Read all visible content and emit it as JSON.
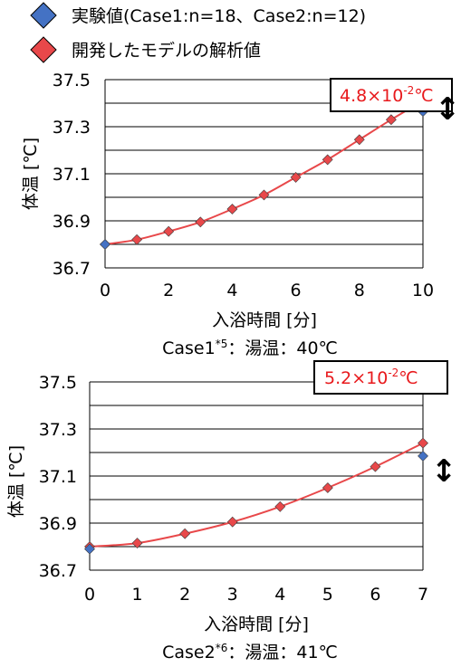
{
  "legend": {
    "experimental_label": "実験値(Case1:n=18、Case2:n=12)",
    "model_label": "開発したモデルの解析値",
    "experimental_color": "#4472C4",
    "model_color": "#E8484A"
  },
  "colors": {
    "curve": "#E8484A",
    "grid": "#000000",
    "diff_box_text": "#E8191C"
  },
  "chart_data": [
    {
      "type": "line",
      "caption_main": "Case1",
      "caption_sup": "*5",
      "caption_rest": "：湯温：40℃",
      "xlabel": "入浴時間 [分]",
      "ylabel": "体温 [℃]",
      "xlim": [
        0,
        10
      ],
      "ylim": [
        36.7,
        37.5
      ],
      "x_ticks": [
        0,
        2,
        4,
        6,
        8,
        10
      ],
      "y_ticks": [
        "36.7",
        "36.9",
        "37.1",
        "37.3",
        "37.5"
      ],
      "grid": "horizontal",
      "series": [
        {
          "name": "開発したモデルの解析値",
          "marker": "diamond",
          "x": [
            0,
            1,
            2,
            3,
            4,
            5,
            6,
            7,
            8,
            9,
            10
          ],
          "y": [
            36.8,
            36.82,
            36.855,
            36.895,
            36.95,
            37.01,
            37.085,
            37.16,
            37.245,
            37.33,
            37.41
          ]
        },
        {
          "name": "実験値(Case1:n=18、Case2:n=12)",
          "marker": "diamond",
          "x": [
            0,
            10
          ],
          "y": [
            36.8,
            37.365
          ]
        }
      ],
      "annotation": {
        "mantissa": "4.8",
        "times": "×",
        "base": "10",
        "exp": "-2",
        "unit": "℃",
        "arrow": "↕"
      }
    },
    {
      "type": "line",
      "caption_main": "Case2",
      "caption_sup": "*6",
      "caption_rest": "：湯温：41℃",
      "xlabel": "入浴時間 [分]",
      "ylabel": "体温 [℃]",
      "xlim": [
        0,
        7
      ],
      "ylim": [
        36.7,
        37.5
      ],
      "x_ticks": [
        0,
        1,
        2,
        3,
        4,
        5,
        6,
        7
      ],
      "y_ticks": [
        "36.7",
        "36.9",
        "37.1",
        "37.3",
        "37.5"
      ],
      "grid": "horizontal",
      "series": [
        {
          "name": "開発したモデルの解析値",
          "marker": "diamond",
          "x": [
            0,
            1,
            2,
            3,
            4,
            5,
            6,
            7
          ],
          "y": [
            36.8,
            36.815,
            36.855,
            36.905,
            36.97,
            37.05,
            37.14,
            37.24
          ]
        },
        {
          "name": "実験値(Case1:n=18、Case2:n=12)",
          "marker": "diamond",
          "x": [
            0,
            7
          ],
          "y": [
            36.79,
            37.185
          ]
        }
      ],
      "annotation": {
        "mantissa": "5.2",
        "times": "×",
        "base": "10",
        "exp": "-2",
        "unit": "℃",
        "arrow": "↕"
      }
    }
  ]
}
